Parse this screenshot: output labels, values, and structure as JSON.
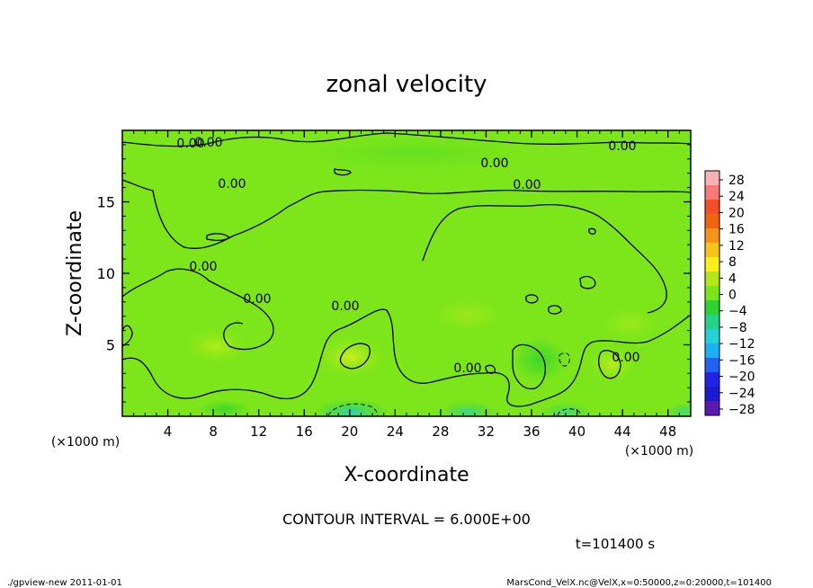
{
  "chart_data": {
    "type": "contour",
    "title": "zonal velocity",
    "xlabel": "X-coordinate",
    "ylabel": "Z-coordinate",
    "x_unit_label": "(×1000 m)",
    "z_unit_label": "(×1000 m)",
    "xlim": [
      0,
      50
    ],
    "ylim": [
      0,
      20
    ],
    "x_ticks": [
      "4",
      "8",
      "12",
      "16",
      "20",
      "24",
      "28",
      "32",
      "36",
      "40",
      "44",
      "48"
    ],
    "y_ticks": [
      "5",
      "10",
      "15"
    ],
    "contour_labels": [
      "0.00",
      "0.00",
      "0.00",
      "0.00",
      "0.00",
      "0.00",
      "0.00",
      "0.00",
      "0.00",
      "0.00",
      "0.00"
    ],
    "contour_interval_text": "CONTOUR INTERVAL = 6.000E+00",
    "time_text": "t=101400 s",
    "colorbar": {
      "labels": [
        "28",
        "24",
        "20",
        "16",
        "12",
        "8",
        "4",
        "0",
        "−4",
        "−8",
        "−12",
        "−16",
        "−20",
        "−24",
        "−28"
      ],
      "colors": [
        "#f7b3b3",
        "#f77a7a",
        "#f24f2a",
        "#f2650f",
        "#f7931a",
        "#f7c31a",
        "#f7ef1a",
        "#b4e61a",
        "#7ce61a",
        "#2fd32f",
        "#23d38a",
        "#23d3d3",
        "#1ab0f2",
        "#2363f2",
        "#2323e6",
        "#1a1acf",
        "#5a1ab0"
      ]
    }
  },
  "footer": {
    "left": "./gpview-new   2011-01-01",
    "right": "MarsCond_VelX.nc@VelX,x=0:50000,z=0:20000,t=101400"
  }
}
